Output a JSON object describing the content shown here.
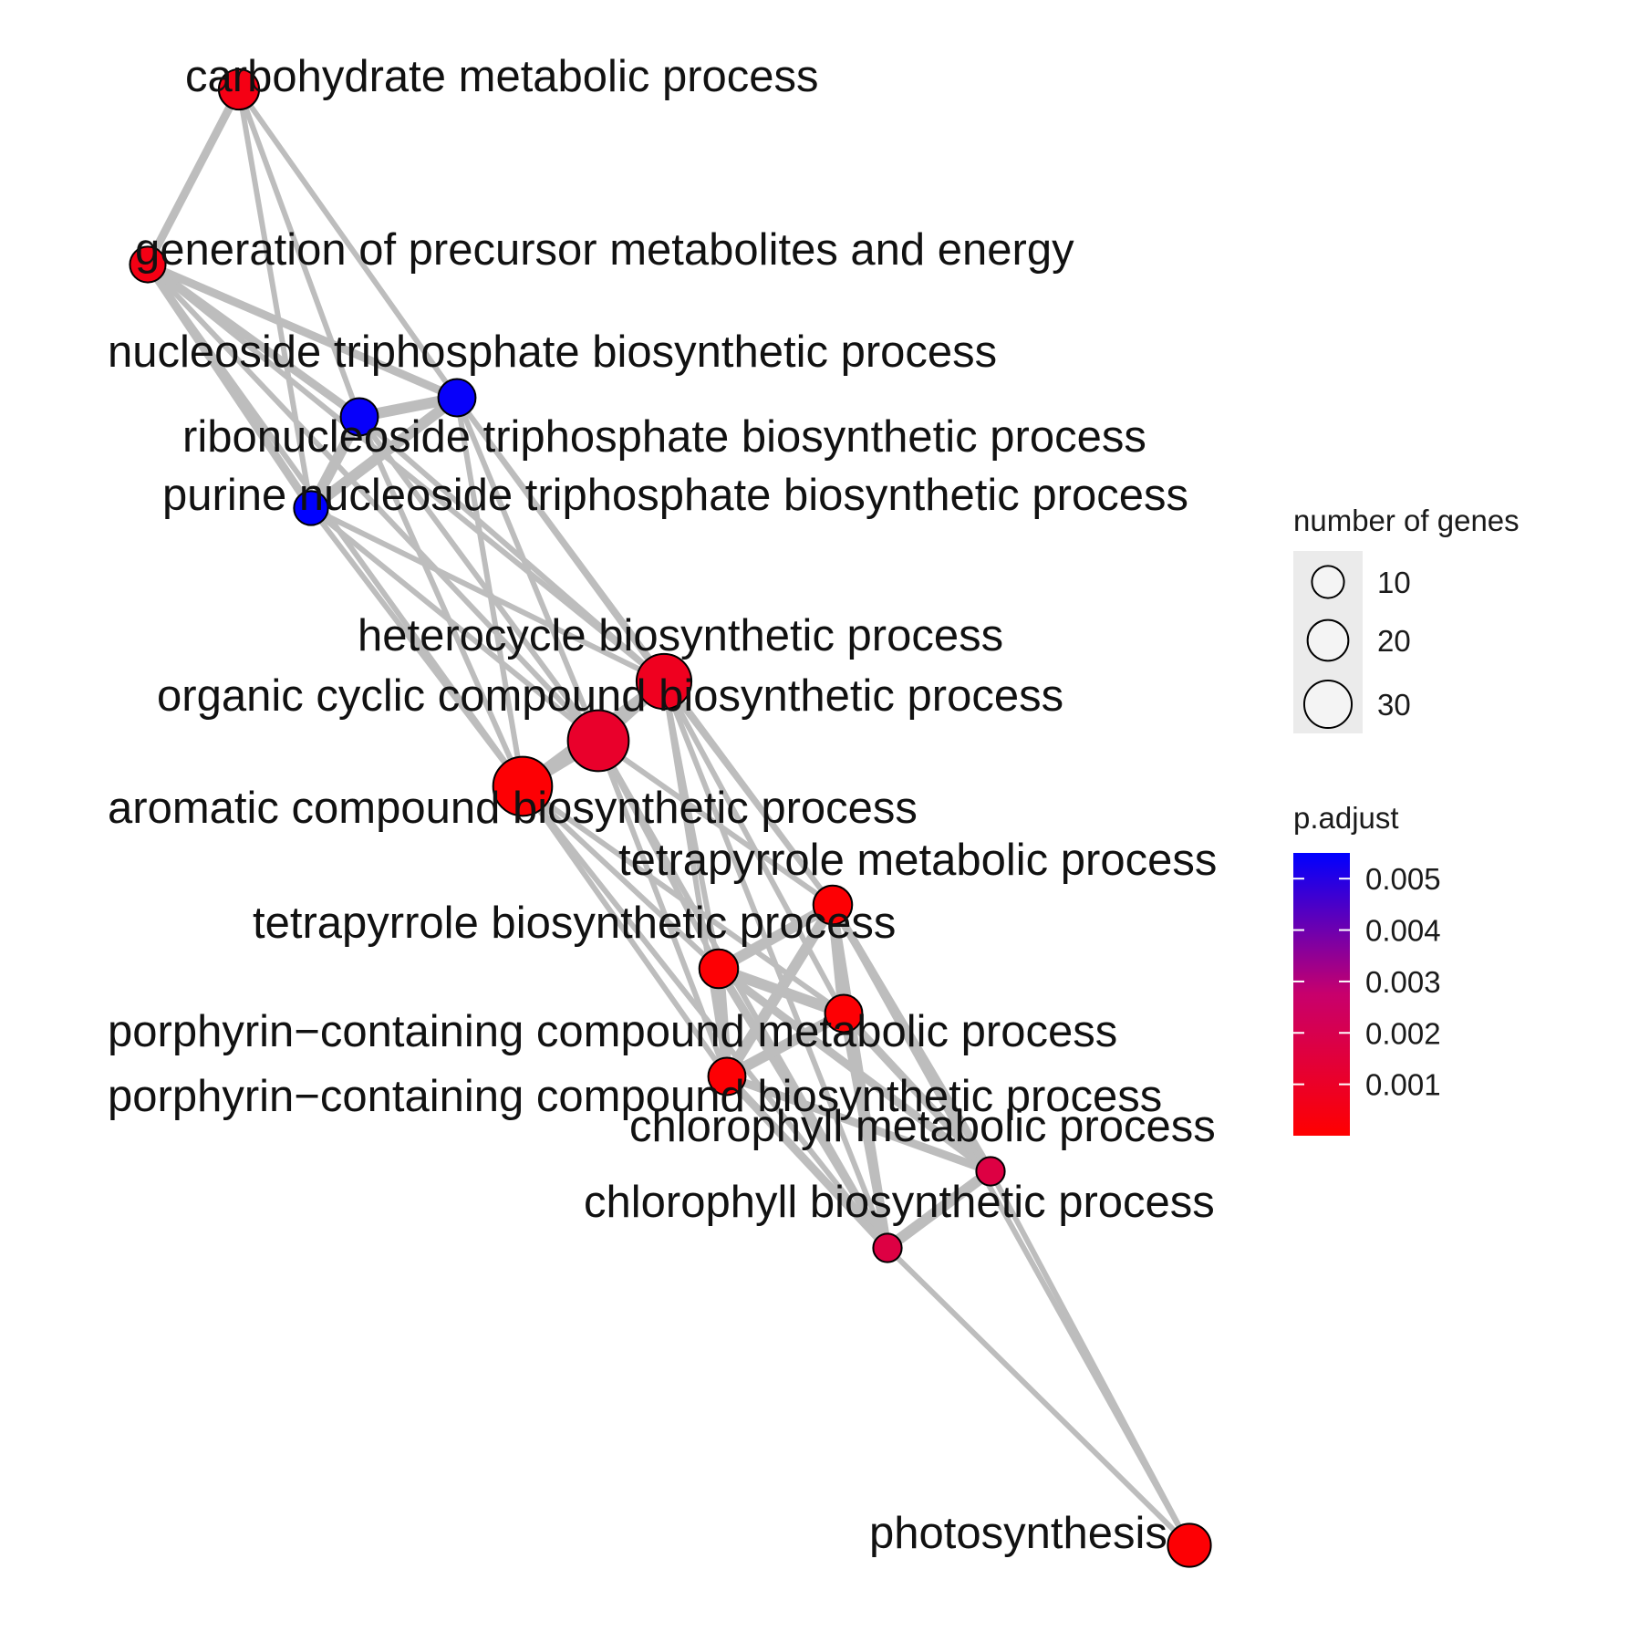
{
  "nodes": [
    {
      "id": "carb",
      "label": "carbohydrate metabolic process",
      "genes": 14,
      "p_adjust": 0.0005
    },
    {
      "id": "gpme",
      "label": "generation of precursor metabolites and energy",
      "genes": 11,
      "p_adjust": 0.0005
    },
    {
      "id": "ntbp",
      "label": "nucleoside triphosphate biosynthetic process",
      "genes": 12,
      "p_adjust": 0.0054
    },
    {
      "id": "rntbp",
      "label": "ribonucleoside triphosphate biosynthetic process",
      "genes": 12,
      "p_adjust": 0.0054
    },
    {
      "id": "pntbp",
      "label": "purine nucleoside triphosphate biosynthetic process",
      "genes": 10,
      "p_adjust": 0.0055
    },
    {
      "id": "hbp",
      "label": "heterocycle biosynthetic process",
      "genes": 26,
      "p_adjust": 0.0008
    },
    {
      "id": "occbp",
      "label": "organic cyclic compound biosynthetic process",
      "genes": 32,
      "p_adjust": 0.0011
    },
    {
      "id": "acbp",
      "label": "aromatic compound biosynthetic process",
      "genes": 30,
      "p_adjust": 0.0001
    },
    {
      "id": "tmp",
      "label": "tetrapyrrole metabolic process",
      "genes": 13,
      "p_adjust": 0.0001
    },
    {
      "id": "tbp",
      "label": "tetrapyrrole biosynthetic process",
      "genes": 13,
      "p_adjust": 0.0001
    },
    {
      "id": "pcmp",
      "label": "porphyrin−containing compound metabolic process",
      "genes": 12,
      "p_adjust": 0.0001
    },
    {
      "id": "pcbp",
      "label": "porphyrin−containing compound biosynthetic process",
      "genes": 12,
      "p_adjust": 0.0001
    },
    {
      "id": "chlmp",
      "label": "chlorophyll metabolic process",
      "genes": 7,
      "p_adjust": 0.0017
    },
    {
      "id": "chlbp",
      "label": "chlorophyll biosynthetic process",
      "genes": 7,
      "p_adjust": 0.0017
    },
    {
      "id": "photo",
      "label": "photosynthesis",
      "genes": 16,
      "p_adjust": 0.0001
    }
  ],
  "edges": [
    {
      "source": "carb",
      "target": "gpme",
      "weight": 2
    },
    {
      "source": "carb",
      "target": "rntbp",
      "weight": 1
    },
    {
      "source": "carb",
      "target": "ntbp",
      "weight": 1
    },
    {
      "source": "carb",
      "target": "pntbp",
      "weight": 1
    },
    {
      "source": "gpme",
      "target": "rntbp",
      "weight": 2
    },
    {
      "source": "gpme",
      "target": "ntbp",
      "weight": 2
    },
    {
      "source": "gpme",
      "target": "pntbp",
      "weight": 2
    },
    {
      "source": "gpme",
      "target": "hbp",
      "weight": 1
    },
    {
      "source": "gpme",
      "target": "occbp",
      "weight": 1
    },
    {
      "source": "gpme",
      "target": "acbp",
      "weight": 1
    },
    {
      "source": "rntbp",
      "target": "ntbp",
      "weight": 3
    },
    {
      "source": "rntbp",
      "target": "pntbp",
      "weight": 3
    },
    {
      "source": "ntbp",
      "target": "pntbp",
      "weight": 3
    },
    {
      "source": "rntbp",
      "target": "hbp",
      "weight": 1
    },
    {
      "source": "rntbp",
      "target": "occbp",
      "weight": 1
    },
    {
      "source": "rntbp",
      "target": "acbp",
      "weight": 1
    },
    {
      "source": "ntbp",
      "target": "hbp",
      "weight": 1
    },
    {
      "source": "ntbp",
      "target": "occbp",
      "weight": 1
    },
    {
      "source": "ntbp",
      "target": "acbp",
      "weight": 1
    },
    {
      "source": "ntbp",
      "target": "tmp",
      "weight": 1
    },
    {
      "source": "pntbp",
      "target": "hbp",
      "weight": 1
    },
    {
      "source": "pntbp",
      "target": "occbp",
      "weight": 1
    },
    {
      "source": "pntbp",
      "target": "acbp",
      "weight": 1
    },
    {
      "source": "hbp",
      "target": "occbp",
      "weight": 3
    },
    {
      "source": "hbp",
      "target": "acbp",
      "weight": 3
    },
    {
      "source": "occbp",
      "target": "acbp",
      "weight": 3
    },
    {
      "source": "hbp",
      "target": "tmp",
      "weight": 1
    },
    {
      "source": "hbp",
      "target": "tbp",
      "weight": 1
    },
    {
      "source": "hbp",
      "target": "pcmp",
      "weight": 1
    },
    {
      "source": "hbp",
      "target": "pcbp",
      "weight": 1
    },
    {
      "source": "hbp",
      "target": "chlbp",
      "weight": 1
    },
    {
      "source": "occbp",
      "target": "tbp",
      "weight": 1
    },
    {
      "source": "occbp",
      "target": "pcbp",
      "weight": 1
    },
    {
      "source": "occbp",
      "target": "tmp",
      "weight": 1
    },
    {
      "source": "occbp",
      "target": "chlbp",
      "weight": 1
    },
    {
      "source": "acbp",
      "target": "tbp",
      "weight": 1
    },
    {
      "source": "acbp",
      "target": "pcbp",
      "weight": 1
    },
    {
      "source": "acbp",
      "target": "pcmp",
      "weight": 1
    },
    {
      "source": "acbp",
      "target": "chlbp",
      "weight": 1
    },
    {
      "source": "tmp",
      "target": "tbp",
      "weight": 3
    },
    {
      "source": "tmp",
      "target": "pcmp",
      "weight": 3
    },
    {
      "source": "tmp",
      "target": "pcbp",
      "weight": 3
    },
    {
      "source": "tmp",
      "target": "chlmp",
      "weight": 2
    },
    {
      "source": "tmp",
      "target": "chlbp",
      "weight": 2
    },
    {
      "source": "tbp",
      "target": "pcmp",
      "weight": 3
    },
    {
      "source": "tbp",
      "target": "pcbp",
      "weight": 3
    },
    {
      "source": "tbp",
      "target": "chlmp",
      "weight": 2
    },
    {
      "source": "tbp",
      "target": "chlbp",
      "weight": 2
    },
    {
      "source": "pcmp",
      "target": "pcbp",
      "weight": 3
    },
    {
      "source": "pcmp",
      "target": "chlmp",
      "weight": 2
    },
    {
      "source": "pcmp",
      "target": "chlbp",
      "weight": 2
    },
    {
      "source": "pcbp",
      "target": "chlmp",
      "weight": 2
    },
    {
      "source": "pcbp",
      "target": "chlbp",
      "weight": 2
    },
    {
      "source": "chlmp",
      "target": "chlbp",
      "weight": 3
    },
    {
      "source": "chlmp",
      "target": "photo",
      "weight": 1
    },
    {
      "source": "chlbp",
      "target": "photo",
      "weight": 1
    },
    {
      "source": "tmp",
      "target": "photo",
      "weight": 1
    }
  ],
  "legend": {
    "size_title": "number of genes",
    "size_entries": [
      {
        "label": "10",
        "genes": 10
      },
      {
        "label": "20",
        "genes": 20
      },
      {
        "label": "30",
        "genes": 30
      }
    ],
    "color_title": "p.adjust",
    "color_ticks": [
      {
        "label": "0.005",
        "value": 0.005
      },
      {
        "label": "0.004",
        "value": 0.004
      },
      {
        "label": "0.003",
        "value": 0.003
      },
      {
        "label": "0.002",
        "value": 0.002
      },
      {
        "label": "0.001",
        "value": 0.001
      }
    ],
    "color_range": [
      0.0,
      0.0055
    ],
    "color_low": "#ff0000",
    "color_high": "#0000ff"
  },
  "edge_color": "#bdbdbd",
  "node_stroke": "#000000"
}
